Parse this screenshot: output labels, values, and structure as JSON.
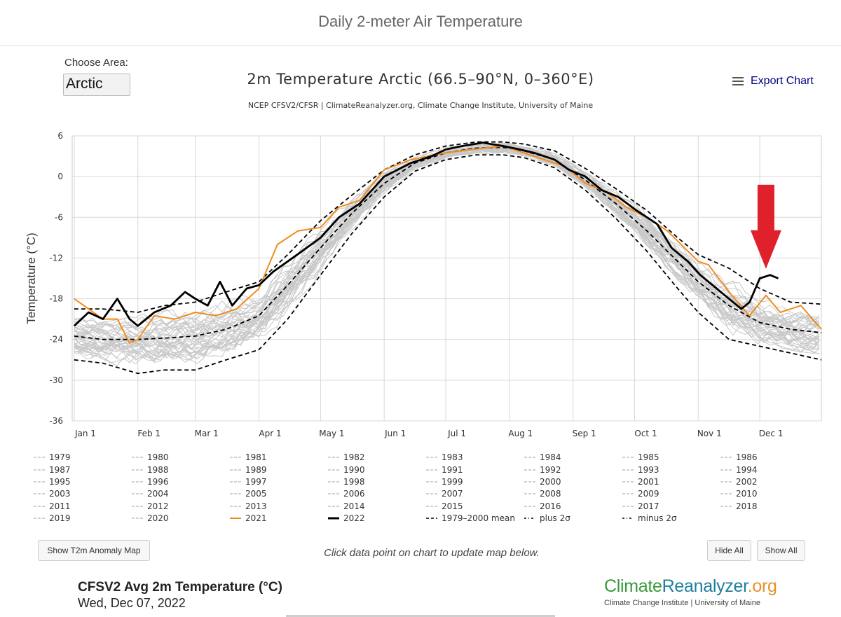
{
  "page": {
    "header_title": "Daily 2-meter Air Temperature",
    "choose_area_label": "Choose Area:",
    "area_value": "Arctic",
    "export_label": "Export Chart",
    "show_map_button": "Show T2m Anomaly Map",
    "hint_text": "Click data point on chart to update map below.",
    "hide_all": "Hide All",
    "show_all": "Show All",
    "map_title": "CFSV2 Avg 2m Temperature (°C)",
    "map_date": "Wed, Dec 07, 2022",
    "logo_part1": "Climate",
    "logo_part2": "Reanalyzer",
    "logo_part3": ".org",
    "logo_subtitle": "Climate Change Institute | University of Maine",
    "colors": {
      "logo_green": "#3a9a3a",
      "logo_teal": "#1f7ea0",
      "logo_orange": "#e8912a",
      "arrow": "#e0202a"
    }
  },
  "chart_data": {
    "type": "line",
    "title": "2m Temperature Arctic (66.5–90°N, 0–360°E)",
    "subtitle": "NCEP CFSV2/CFSR | ClimateReanalyzer.org, Climate Change Institute, University of Maine",
    "ylabel": "Temperature (°C)",
    "ylim": [
      -36,
      6
    ],
    "yticks": [
      -36,
      -30,
      -24,
      -18,
      -12,
      -6,
      0,
      6
    ],
    "ytick_labels": [
      "-36",
      "-30",
      "-24",
      "-18",
      "-12",
      "-6",
      "0",
      "6"
    ],
    "xlim": [
      0,
      365
    ],
    "xticks": [
      {
        "day": 1,
        "label": "Jan 1"
      },
      {
        "day": 32,
        "label": "Feb 1"
      },
      {
        "day": 60,
        "label": "Mar 1"
      },
      {
        "day": 91,
        "label": "Apr 1"
      },
      {
        "day": 121,
        "label": "May 1"
      },
      {
        "day": 152,
        "label": "Jun 1"
      },
      {
        "day": 182,
        "label": "Jul 1"
      },
      {
        "day": 213,
        "label": "Aug 1"
      },
      {
        "day": 244,
        "label": "Sep 1"
      },
      {
        "day": 274,
        "label": "Oct 1"
      },
      {
        "day": 305,
        "label": "Nov 1"
      },
      {
        "day": 335,
        "label": "Dec 1"
      }
    ],
    "grid": true,
    "annotation": {
      "type": "arrow",
      "color": "#e0202a",
      "points_to_day": 338,
      "points_to_value": -14
    },
    "background_years": [
      "1979",
      "1980",
      "1981",
      "1982",
      "1983",
      "1984",
      "1985",
      "1986",
      "1987",
      "1988",
      "1989",
      "1990",
      "1991",
      "1992",
      "1993",
      "1994",
      "1995",
      "1996",
      "1997",
      "1998",
      "1999",
      "2000",
      "2001",
      "2002",
      "2003",
      "2004",
      "2005",
      "2006",
      "2007",
      "2008",
      "2009",
      "2010",
      "2011",
      "2012",
      "2013",
      "2014",
      "2015",
      "2016",
      "2017",
      "2018",
      "2019",
      "2020"
    ],
    "background_color": "#c8c8c8",
    "series": [
      {
        "name": "1979-2000 mean",
        "color": "#000000",
        "style": "dashed",
        "x": [
          1,
          15,
          32,
          45,
          60,
          75,
          91,
          105,
          121,
          136,
          152,
          167,
          182,
          197,
          210,
          220,
          235,
          250,
          265,
          280,
          295,
          305,
          320,
          335,
          350,
          365
        ],
        "y": [
          -23.5,
          -24,
          -24,
          -23.8,
          -23.5,
          -22.5,
          -20.5,
          -16,
          -10.5,
          -5.5,
          -1,
          2,
          3.5,
          4.2,
          4.3,
          3.8,
          2.5,
          -0.5,
          -4,
          -8,
          -12.5,
          -15.5,
          -19,
          -21.5,
          -22.5,
          -23
        ]
      },
      {
        "name": "plus 2σ",
        "color": "#000000",
        "style": "dashed",
        "x": [
          1,
          15,
          32,
          45,
          60,
          75,
          91,
          105,
          121,
          136,
          152,
          167,
          182,
          197,
          210,
          220,
          235,
          250,
          265,
          280,
          295,
          305,
          320,
          335,
          350,
          365
        ],
        "y": [
          -19.5,
          -19.5,
          -20,
          -19,
          -18.5,
          -17,
          -15.5,
          -11.5,
          -6.5,
          -2.8,
          1,
          3.2,
          4.5,
          5.1,
          5.1,
          4.8,
          3.8,
          1.2,
          -1.8,
          -5,
          -9,
          -11.5,
          -13.5,
          -16.5,
          -18.5,
          -18.8
        ]
      },
      {
        "name": "minus 2σ",
        "color": "#000000",
        "style": "dashed",
        "x": [
          1,
          15,
          32,
          45,
          60,
          75,
          91,
          105,
          121,
          136,
          152,
          167,
          182,
          197,
          210,
          220,
          235,
          250,
          265,
          280,
          295,
          305,
          320,
          335,
          350,
          365
        ],
        "y": [
          -27,
          -27.5,
          -29,
          -28.5,
          -28.5,
          -27,
          -25.5,
          -21,
          -14.5,
          -8.5,
          -3,
          0.8,
          2.5,
          3.2,
          3.2,
          2.8,
          1.3,
          -2,
          -6.2,
          -11,
          -16.5,
          -20,
          -24,
          -25,
          -26,
          -27
        ]
      },
      {
        "name": "2021",
        "color": "#f08c1e",
        "style": "solid",
        "x": [
          1,
          8,
          15,
          22,
          28,
          32,
          40,
          50,
          60,
          70,
          80,
          91,
          100,
          110,
          121,
          130,
          140,
          152,
          165,
          182,
          195,
          210,
          225,
          240,
          250,
          260,
          270,
          280,
          290,
          300,
          305,
          310,
          320,
          330,
          338,
          345,
          355,
          365
        ],
        "y": [
          -18,
          -19.5,
          -21,
          -21,
          -24.5,
          -24,
          -20.5,
          -21,
          -20,
          -20.5,
          -19.5,
          -16.5,
          -10,
          -8,
          -7.5,
          -4.5,
          -3.5,
          1,
          2.5,
          3.5,
          4,
          4.5,
          3,
          1.5,
          -1,
          -2.2,
          -4.5,
          -6,
          -8,
          -11,
          -12.5,
          -13,
          -17,
          -20.5,
          -17.5,
          -20,
          -19,
          -22.5
        ]
      },
      {
        "name": "2022",
        "color": "#000000",
        "style": "solid",
        "x": [
          1,
          8,
          15,
          22,
          28,
          32,
          40,
          48,
          55,
          60,
          66,
          72,
          78,
          85,
          91,
          98,
          105,
          112,
          121,
          130,
          140,
          152,
          165,
          175,
          182,
          190,
          200,
          210,
          218,
          225,
          235,
          242,
          250,
          258,
          266,
          275,
          285,
          292,
          300,
          306,
          312,
          318,
          322,
          326,
          330,
          335,
          340,
          344
        ],
        "y": [
          -22,
          -20,
          -21,
          -18,
          -21,
          -22,
          -20,
          -19,
          -17,
          -18,
          -19,
          -15.5,
          -19,
          -16.5,
          -16,
          -14,
          -12.5,
          -11,
          -9,
          -6,
          -4,
          0,
          2,
          3,
          4,
          4.5,
          5,
          4.5,
          4,
          3.5,
          2.5,
          1,
          0,
          -2,
          -3,
          -5,
          -7,
          -10.5,
          -12.5,
          -14.5,
          -16,
          -17.5,
          -18.5,
          -19.5,
          -18.5,
          -15,
          -14.5,
          -15
        ]
      }
    ]
  },
  "legend": {
    "items": [
      {
        "label": "1979",
        "style": "bg"
      },
      {
        "label": "1980",
        "style": "bg"
      },
      {
        "label": "1981",
        "style": "bg"
      },
      {
        "label": "1982",
        "style": "bg"
      },
      {
        "label": "1983",
        "style": "bg"
      },
      {
        "label": "1984",
        "style": "bg"
      },
      {
        "label": "1985",
        "style": "bg"
      },
      {
        "label": "1986",
        "style": "bg"
      },
      {
        "label": "1987",
        "style": "bg"
      },
      {
        "label": "1988",
        "style": "bg"
      },
      {
        "label": "1989",
        "style": "bg"
      },
      {
        "label": "1990",
        "style": "bg"
      },
      {
        "label": "1991",
        "style": "bg"
      },
      {
        "label": "1992",
        "style": "bg"
      },
      {
        "label": "1993",
        "style": "bg"
      },
      {
        "label": "1994",
        "style": "bg"
      },
      {
        "label": "1995",
        "style": "bg"
      },
      {
        "label": "1996",
        "style": "bg"
      },
      {
        "label": "1997",
        "style": "bg"
      },
      {
        "label": "1998",
        "style": "bg"
      },
      {
        "label": "1999",
        "style": "bg"
      },
      {
        "label": "2000",
        "style": "bg"
      },
      {
        "label": "2001",
        "style": "bg"
      },
      {
        "label": "2002",
        "style": "bg"
      },
      {
        "label": "2003",
        "style": "bg"
      },
      {
        "label": "2004",
        "style": "bg"
      },
      {
        "label": "2005",
        "style": "bg"
      },
      {
        "label": "2006",
        "style": "bg"
      },
      {
        "label": "2007",
        "style": "bg"
      },
      {
        "label": "2008",
        "style": "bg"
      },
      {
        "label": "2009",
        "style": "bg"
      },
      {
        "label": "2010",
        "style": "bg"
      },
      {
        "label": "2011",
        "style": "bg"
      },
      {
        "label": "2012",
        "style": "bg"
      },
      {
        "label": "2013",
        "style": "bg"
      },
      {
        "label": "2014",
        "style": "bg"
      },
      {
        "label": "2015",
        "style": "bg"
      },
      {
        "label": "2016",
        "style": "bg"
      },
      {
        "label": "2017",
        "style": "bg"
      },
      {
        "label": "2018",
        "style": "bg"
      },
      {
        "label": "2019",
        "style": "bg"
      },
      {
        "label": "2020",
        "style": "bg"
      },
      {
        "label": "2021",
        "style": "orange"
      },
      {
        "label": "2022",
        "style": "black"
      },
      {
        "label": "1979–2000 mean",
        "style": "dashed"
      },
      {
        "label": "plus 2σ",
        "style": "dashdot"
      },
      {
        "label": "minus 2σ",
        "style": "dashdot"
      }
    ]
  }
}
